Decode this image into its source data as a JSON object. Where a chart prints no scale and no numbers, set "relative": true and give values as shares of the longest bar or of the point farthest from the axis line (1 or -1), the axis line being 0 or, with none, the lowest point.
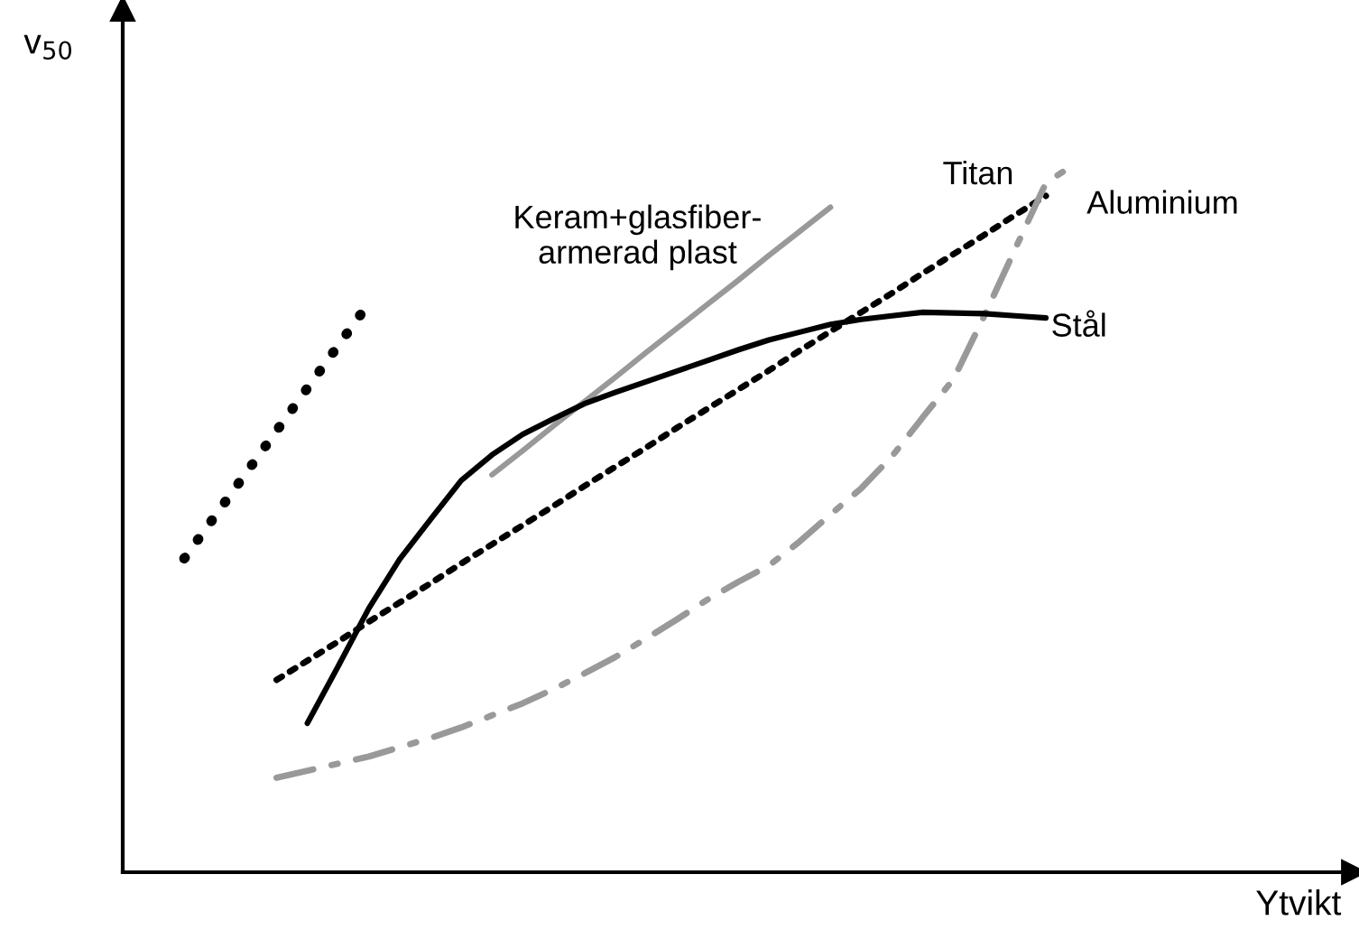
{
  "chart_data": {
    "type": "line",
    "relative": true,
    "xlabel": "Ytvikt",
    "ylabel": "v$_{50}$",
    "tick_labels": false,
    "categories": [
      null,
      null,
      null,
      null,
      null,
      null,
      null,
      null,
      null,
      null,
      null,
      null,
      null,
      null,
      null,
      null,
      null,
      null,
      null,
      null,
      null,
      null,
      null,
      null,
      null,
      null,
      null,
      null,
      null,
      null,
      null,
      null,
      null,
      null,
      null,
      null,
      null,
      null,
      null
    ],
    "series": [
      {
        "color": "#000000",
        "line_style": "dotted",
        "values": [
          null,
          0.442,
          0.502,
          0.562,
          0.622,
          0.682,
          0.742,
          0.802,
          null,
          null,
          null,
          null,
          null,
          null,
          null,
          null,
          null,
          null,
          null,
          null,
          null,
          null,
          null,
          null,
          null,
          null,
          null,
          null,
          null,
          null,
          null,
          null,
          null,
          null,
          null,
          null,
          null,
          null,
          null
        ]
      },
      {
        "name": "Keram+glasfiber-\narmerad plast",
        "color": "#999999",
        "line_style": "solid",
        "values": [
          null,
          null,
          null,
          null,
          null,
          null,
          null,
          null,
          null,
          null,
          null,
          0.56,
          0.594,
          0.629,
          0.663,
          0.697,
          0.732,
          0.766,
          0.8,
          0.834,
          0.869,
          0.903,
          0.937,
          null,
          null,
          null,
          null,
          null,
          null,
          null,
          null,
          null,
          null,
          null,
          null,
          null,
          null,
          null,
          null
        ]
      },
      {
        "name": "Titan",
        "color": "#000000",
        "line_style": "dotted",
        "values": [
          null,
          null,
          null,
          null,
          0.271,
          0.298,
          0.325,
          0.353,
          0.38,
          0.407,
          0.435,
          0.462,
          0.489,
          0.516,
          0.544,
          0.571,
          0.598,
          0.626,
          0.653,
          0.68,
          0.707,
          0.735,
          0.762,
          0.789,
          0.816,
          0.844,
          0.871,
          0.898,
          0.926,
          0.953,
          null,
          null,
          null,
          null,
          null,
          null,
          null,
          null,
          null
        ]
      },
      {
        "name": "Aluminium",
        "color": "#999999",
        "line_style": "dashdot",
        "values": [
          null,
          null,
          null,
          null,
          0.133,
          0.143,
          0.153,
          0.163,
          0.176,
          0.189,
          0.204,
          0.221,
          0.238,
          0.258,
          0.28,
          0.303,
          0.329,
          0.356,
          0.384,
          0.409,
          0.432,
          0.466,
          0.504,
          0.541,
          0.586,
          0.641,
          0.695,
          0.784,
          0.878,
          0.971,
          1.0,
          null,
          null,
          null,
          null,
          null,
          null,
          null,
          null
        ]
      },
      {
        "name": "Stål",
        "color": "#000000",
        "line_style": "solid",
        "values": [
          null,
          null,
          null,
          null,
          null,
          0.21,
          0.29,
          0.372,
          0.441,
          0.497,
          0.552,
          0.588,
          0.617,
          0.639,
          0.66,
          0.676,
          0.691,
          0.706,
          0.721,
          0.736,
          0.75,
          0.761,
          0.772,
          0.779,
          0.784,
          0.789,
          0.788,
          0.787,
          0.784,
          0.781,
          null,
          null,
          null,
          null,
          null,
          null,
          null,
          null,
          null
        ]
      }
    ]
  }
}
